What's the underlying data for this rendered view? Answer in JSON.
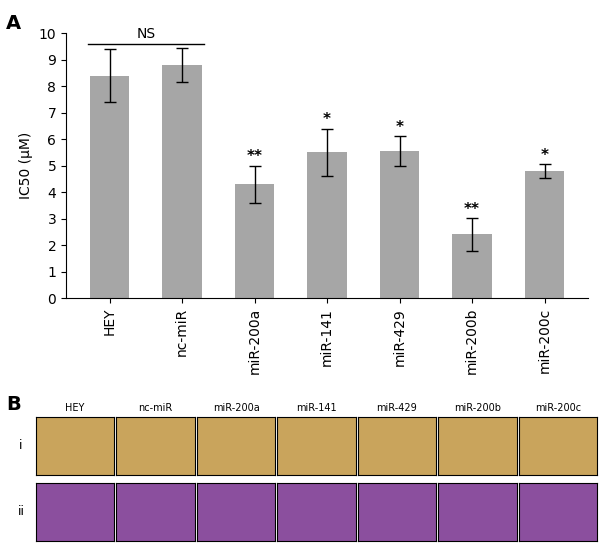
{
  "chart_data": {
    "type": "bar",
    "panel_label": "A",
    "categories": [
      "HEY",
      "nc-miR",
      "miR-200a",
      "miR-141",
      "miR-429",
      "miR-200b",
      "miR-200c"
    ],
    "values": [
      8.4,
      8.8,
      4.3,
      5.5,
      5.55,
      2.4,
      4.8
    ],
    "errors": [
      1.0,
      0.65,
      0.7,
      0.9,
      0.57,
      0.62,
      0.25
    ],
    "significance": [
      null,
      null,
      "**",
      "*",
      "*",
      "**",
      "*"
    ],
    "bracket": {
      "text": "NS",
      "from": "HEY",
      "to": "nc-miR"
    },
    "y_label": "IC50 (μM)",
    "color": "#a6a6a6",
    "ylim": [
      0,
      10
    ],
    "yticks": [
      0,
      1,
      2,
      3,
      4,
      5,
      6,
      7,
      8,
      9,
      10
    ],
    "grid": false
  },
  "image_grid": {
    "panel_label": "B",
    "columns": [
      "HEY",
      "nc-miR",
      "miR-200a",
      "miR-141",
      "miR-429",
      "miR-200b",
      "miR-200c"
    ],
    "rows": [
      "i",
      "ii"
    ]
  }
}
